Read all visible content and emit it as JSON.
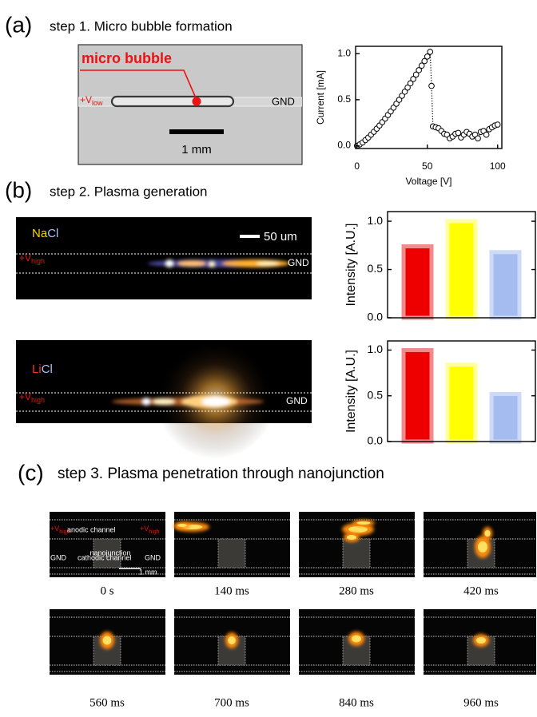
{
  "panel_a": {
    "label": "(a)",
    "title": "step 1. Micro bubble formation",
    "image": {
      "annotation": "micro bubble",
      "left_electrode": "+V",
      "left_electrode_sub": "low",
      "right_electrode": "GND",
      "scale_bar": "1 mm"
    }
  },
  "panel_b": {
    "label": "(b)",
    "title": "step 2. Plasma generation",
    "images": [
      {
        "salt_part1": "Na",
        "salt_part2": "Cl",
        "scale_bar": "50 um",
        "left_electrode": "+V",
        "left_electrode_sub": "high",
        "right_electrode": "GND"
      },
      {
        "salt_part1": "Li",
        "salt_part2": "Cl",
        "left_electrode": "+V",
        "left_electrode_sub": "high",
        "right_electrode": "GND"
      }
    ]
  },
  "panel_c": {
    "label": "(c)",
    "title": "step 3. Plasma penetration through nanojunction",
    "labels": {
      "anode": "+V",
      "anode_sub": "high",
      "anodic_channel": "anodic channel",
      "nanojunction": "nanojunction",
      "cathode": "GND",
      "cathodic_channel": "cathodic channel",
      "scale_bar": "1 mm"
    },
    "frames": [
      "0 s",
      "140 ms",
      "280 ms",
      "420 ms",
      "560 ms",
      "700 ms",
      "840 ms",
      "960 ms"
    ]
  },
  "chart_data": [
    {
      "type": "line",
      "marker": "circle",
      "linestyle": "dotted",
      "x_label": "Voltage [V]",
      "y_label": "Current [mA]",
      "x": [
        0,
        2,
        4,
        6,
        8,
        10,
        12,
        14,
        16,
        18,
        20,
        22,
        24,
        26,
        28,
        30,
        32,
        34,
        36,
        38,
        40,
        42,
        44,
        46,
        48,
        50,
        52,
        53,
        54,
        56,
        58,
        60,
        62,
        64,
        66,
        68,
        70,
        72,
        74,
        76,
        78,
        80,
        82,
        84,
        86,
        88,
        90,
        92,
        94,
        96,
        98,
        100
      ],
      "series": [
        {
          "color": "#000000",
          "values": [
            0,
            0.015,
            0.036,
            0.062,
            0.089,
            0.12,
            0.152,
            0.185,
            0.22,
            0.257,
            0.295,
            0.334,
            0.373,
            0.414,
            0.456,
            0.499,
            0.543,
            0.587,
            0.632,
            0.678,
            0.725,
            0.773,
            0.821,
            0.87,
            0.919,
            0.969,
            1.02,
            0.65,
            0.21,
            0.2,
            0.19,
            0.16,
            0.13,
            0.12,
            0.08,
            0.1,
            0.13,
            0.14,
            0.09,
            0.12,
            0.15,
            0.13,
            0.1,
            0.12,
            0.08,
            0.15,
            0.16,
            0.12,
            0.18,
            0.2,
            0.22,
            0.23
          ]
        }
      ],
      "xlim": [
        -1,
        103
      ],
      "ylim": [
        -0.03,
        1.08
      ],
      "xticks": [
        0,
        50,
        100
      ],
      "yticks": [
        {
          "value": 0,
          "label": "0.0"
        },
        0.5,
        {
          "value": 1,
          "label": "1.0"
        }
      ]
    },
    {
      "type": "bar",
      "y_label": "Intensity [A.U.]",
      "categories": [
        null,
        null,
        null
      ],
      "values": [
        0.74,
        1.0,
        0.68
      ],
      "colors": [
        "#ee0000",
        "#ffff00",
        "#a4bcf0"
      ],
      "edge_colors": [
        "#f28c8c",
        "#ffff9c",
        "#cddbf8"
      ],
      "ylim": [
        0,
        1.1
      ],
      "yticks": [
        {
          "value": 0,
          "label": "0.0"
        },
        0.5,
        {
          "value": 1,
          "label": "1.0"
        }
      ],
      "mirror_ticks": true
    },
    {
      "type": "bar",
      "y_label": "Intensity [A.U.]",
      "categories": [
        null,
        null,
        null
      ],
      "values": [
        1.0,
        0.84,
        0.52
      ],
      "colors": [
        "#ee0000",
        "#ffff00",
        "#a4bcf0"
      ],
      "edge_colors": [
        "#f28c8c",
        "#ffff9c",
        "#cddbf8"
      ],
      "ylim": [
        0,
        1.1
      ],
      "yticks": [
        {
          "value": 0,
          "label": "0.0"
        },
        0.5,
        {
          "value": 1,
          "label": "1.0"
        }
      ],
      "mirror_ticks": true
    }
  ]
}
